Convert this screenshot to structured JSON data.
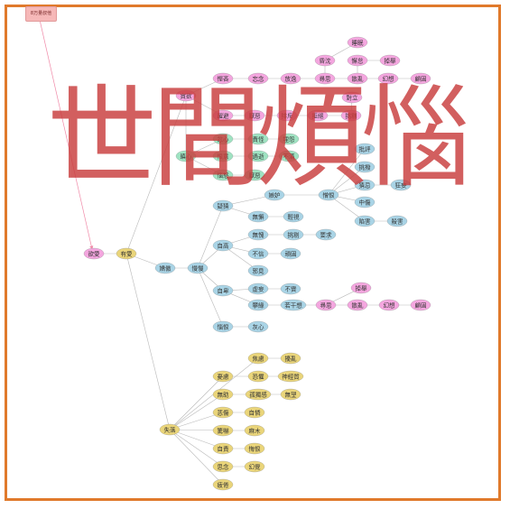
{
  "title": "世間煩惱",
  "tag_label": "8万量叔他",
  "colors": {
    "frame": "#e07a2c",
    "pink": "#f4a6df",
    "yellow": "#ead57a",
    "blue": "#a9d4e6",
    "green": "#9fe3c2",
    "edge": "#b9b9b9",
    "pink_edge": "#f08aa8"
  },
  "nodes": {
    "n1": {
      "label": "睡眠",
      "color": "pink"
    },
    "n2": {
      "label": "昏沈",
      "color": "pink"
    },
    "n3": {
      "label": "懈怠",
      "color": "pink"
    },
    "n4": {
      "label": "掉舉",
      "color": "pink"
    },
    "n5": {
      "label": "慳吝",
      "color": "pink"
    },
    "n6": {
      "label": "忘念",
      "color": "pink"
    },
    "n7": {
      "label": "放逸",
      "color": "pink"
    },
    "n8": {
      "label": "尋思",
      "color": "pink"
    },
    "n9": {
      "label": "散亂",
      "color": "pink"
    },
    "n10": {
      "label": "幻想",
      "color": "pink"
    },
    "n11": {
      "label": "顧固",
      "color": "pink"
    },
    "n12": {
      "label": "貪欲",
      "color": "pink"
    },
    "n13": {
      "label": "對立",
      "color": "pink"
    },
    "n14": {
      "label": "躍避",
      "color": "pink"
    },
    "n15": {
      "label": "厭惡",
      "color": "pink"
    },
    "n16": {
      "label": "排斥",
      "color": "pink"
    },
    "n17": {
      "label": "拒絕",
      "color": "pink"
    },
    "n18": {
      "label": "挑剔",
      "color": "pink"
    },
    "n19": {
      "label": "忿心",
      "color": "green"
    },
    "n20": {
      "label": "責怪",
      "color": "green"
    },
    "n21": {
      "label": "埋怨",
      "color": "green"
    },
    "n22": {
      "label": "瞋心",
      "color": "green"
    },
    "n23": {
      "label": "恨意",
      "color": "green"
    },
    "n24": {
      "label": "過逝",
      "color": "green"
    },
    "n25": {
      "label": "不滿",
      "color": "green"
    },
    "n26": {
      "label": "批評",
      "color": "blue"
    },
    "n27": {
      "label": "惱怒",
      "color": "green"
    },
    "n28": {
      "label": "厭惡",
      "color": "green"
    },
    "n29": {
      "label": "挑撥",
      "color": "blue"
    },
    "n30": {
      "label": "嫉妒",
      "color": "blue"
    },
    "n31": {
      "label": "憎恨",
      "color": "blue"
    },
    "n32": {
      "label": "猜忌",
      "color": "blue"
    },
    "n33": {
      "label": "狂妄",
      "color": "blue"
    },
    "n34": {
      "label": "疑猜",
      "color": "blue"
    },
    "n35": {
      "label": "中傷",
      "color": "blue"
    },
    "n36": {
      "label": "無懈",
      "color": "blue"
    },
    "n37": {
      "label": "輕視",
      "color": "blue"
    },
    "n38": {
      "label": "陷害",
      "color": "blue"
    },
    "n39": {
      "label": "殺害",
      "color": "blue"
    },
    "n40": {
      "label": "無愧",
      "color": "blue"
    },
    "n41": {
      "label": "挑剔",
      "color": "blue"
    },
    "n42": {
      "label": "要求",
      "color": "blue"
    },
    "n43": {
      "label": "欲愛",
      "color": "pink"
    },
    "n44": {
      "label": "有愛",
      "color": "yellow"
    },
    "n45": {
      "label": "自高",
      "color": "blue"
    },
    "n46": {
      "label": "不信",
      "color": "blue"
    },
    "n47": {
      "label": "頑固",
      "color": "blue"
    },
    "n48": {
      "label": "嬌傲",
      "color": "blue"
    },
    "n49": {
      "label": "慢慢",
      "color": "blue"
    },
    "n50": {
      "label": "邪見",
      "color": "blue"
    },
    "n51": {
      "label": "掉舉",
      "color": "pink"
    },
    "n52": {
      "label": "自卑",
      "color": "blue"
    },
    "n53": {
      "label": "虛妄",
      "color": "blue"
    },
    "n54": {
      "label": "不實",
      "color": "blue"
    },
    "n55": {
      "label": "攀緣",
      "color": "blue"
    },
    "n56": {
      "label": "若干想",
      "color": "blue"
    },
    "n57": {
      "label": "尋思",
      "color": "pink"
    },
    "n58": {
      "label": "散亂",
      "color": "pink"
    },
    "n59": {
      "label": "幻想",
      "color": "pink"
    },
    "n60": {
      "label": "顧固",
      "color": "pink"
    },
    "n61": {
      "label": "惱恨",
      "color": "blue"
    },
    "n62": {
      "label": "灰心",
      "color": "blue"
    },
    "n63": {
      "label": "焦慮",
      "color": "yellow"
    },
    "n64": {
      "label": "擾亂",
      "color": "yellow"
    },
    "n65": {
      "label": "憂慮",
      "color": "yellow"
    },
    "n66": {
      "label": "恐懼",
      "color": "yellow"
    },
    "n67": {
      "label": "神經質",
      "color": "yellow"
    },
    "n68": {
      "label": "無助",
      "color": "yellow"
    },
    "n69": {
      "label": "孤獨感",
      "color": "yellow"
    },
    "n70": {
      "label": "無望",
      "color": "yellow"
    },
    "n71": {
      "label": "悲傷",
      "color": "yellow"
    },
    "n72": {
      "label": "自憐",
      "color": "yellow"
    },
    "n73": {
      "label": "失落",
      "color": "yellow"
    },
    "n74": {
      "label": "驚嚇",
      "color": "yellow"
    },
    "n75": {
      "label": "麻木",
      "color": "yellow"
    },
    "n76": {
      "label": "自責",
      "color": "yellow"
    },
    "n77": {
      "label": "悔恨",
      "color": "yellow"
    },
    "n78": {
      "label": "思念",
      "color": "yellow"
    },
    "n79": {
      "label": "幻覺",
      "color": "yellow"
    },
    "n80": {
      "label": "疲倦",
      "color": "yellow"
    }
  },
  "edges": [
    [
      "n43",
      "n44"
    ],
    [
      "n44",
      "n12"
    ],
    [
      "n44",
      "n48"
    ],
    [
      "n44",
      "n73"
    ],
    [
      "n48",
      "n49"
    ],
    [
      "n49",
      "n34"
    ],
    [
      "n49",
      "n45"
    ],
    [
      "n49",
      "n52"
    ],
    [
      "n49",
      "n61"
    ],
    [
      "n12",
      "n5"
    ],
    [
      "n5",
      "n6"
    ],
    [
      "n6",
      "n7"
    ],
    [
      "n7",
      "n8"
    ],
    [
      "n8",
      "n2"
    ],
    [
      "n2",
      "n1"
    ],
    [
      "n8",
      "n9"
    ],
    [
      "n9",
      "n3"
    ],
    [
      "n3",
      "n4"
    ],
    [
      "n9",
      "n10"
    ],
    [
      "n10",
      "n11"
    ],
    [
      "n12",
      "n14"
    ],
    [
      "n14",
      "n15"
    ],
    [
      "n15",
      "n16"
    ],
    [
      "n16",
      "n17"
    ],
    [
      "n17",
      "n18"
    ],
    [
      "n18",
      "n13"
    ],
    [
      "n12",
      "n22"
    ],
    [
      "n22",
      "n19"
    ],
    [
      "n19",
      "n20"
    ],
    [
      "n20",
      "n21"
    ],
    [
      "n22",
      "n23"
    ],
    [
      "n23",
      "n24"
    ],
    [
      "n24",
      "n25"
    ],
    [
      "n22",
      "n27"
    ],
    [
      "n27",
      "n28"
    ],
    [
      "n34",
      "n30"
    ],
    [
      "n30",
      "n31"
    ],
    [
      "n31",
      "n26"
    ],
    [
      "n31",
      "n29"
    ],
    [
      "n31",
      "n32"
    ],
    [
      "n32",
      "n33"
    ],
    [
      "n31",
      "n35"
    ],
    [
      "n31",
      "n38"
    ],
    [
      "n38",
      "n39"
    ],
    [
      "n34",
      "n36"
    ],
    [
      "n36",
      "n37"
    ],
    [
      "n45",
      "n40"
    ],
    [
      "n40",
      "n41"
    ],
    [
      "n41",
      "n42"
    ],
    [
      "n45",
      "n46"
    ],
    [
      "n46",
      "n47"
    ],
    [
      "n45",
      "n50"
    ],
    [
      "n52",
      "n53"
    ],
    [
      "n53",
      "n54"
    ],
    [
      "n52",
      "n55"
    ],
    [
      "n55",
      "n56"
    ],
    [
      "n56",
      "n57"
    ],
    [
      "n57",
      "n51"
    ],
    [
      "n57",
      "n58"
    ],
    [
      "n58",
      "n59"
    ],
    [
      "n59",
      "n60"
    ],
    [
      "n61",
      "n62"
    ],
    [
      "n73",
      "n63"
    ],
    [
      "n63",
      "n64"
    ],
    [
      "n73",
      "n65"
    ],
    [
      "n65",
      "n66"
    ],
    [
      "n66",
      "n67"
    ],
    [
      "n73",
      "n68"
    ],
    [
      "n68",
      "n69"
    ],
    [
      "n69",
      "n70"
    ],
    [
      "n73",
      "n71"
    ],
    [
      "n71",
      "n72"
    ],
    [
      "n73",
      "n74"
    ],
    [
      "n74",
      "n75"
    ],
    [
      "n73",
      "n76"
    ],
    [
      "n76",
      "n77"
    ],
    [
      "n73",
      "n78"
    ],
    [
      "n78",
      "n79"
    ],
    [
      "n73",
      "n80"
    ]
  ]
}
